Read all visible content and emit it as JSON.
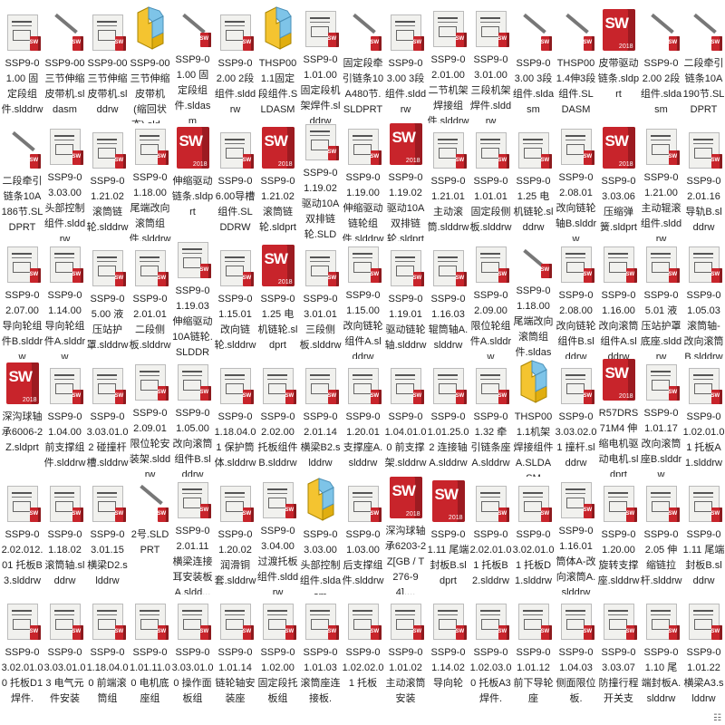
{
  "colors": {
    "sw_red": "#c8242b",
    "assembly_yellow": "#f4c430",
    "assembly_blue": "#7ec4e8"
  },
  "view_toggle_icon": "details-view-icon",
  "rows": [
    [
      {
        "name": "SSP9-01.00 固定段组件.slddrw",
        "icon": "drawing"
      },
      {
        "name": "SSP9-00三节伸缩皮带机.sldasm",
        "icon": "model"
      },
      {
        "name": "SSP9-00三节伸缩皮带机.slddrw",
        "icon": "drawing"
      },
      {
        "name": "SSP9-00三节伸缩皮带机(缩回状态).sld...",
        "icon": "assembly"
      },
      {
        "name": "SSP9-01.00 固定段组件.sldasm",
        "icon": "model"
      },
      {
        "name": "SSP9-02.00 2段组件.slddrw",
        "icon": "drawing"
      },
      {
        "name": "THSP001.1固定段组件.SLDASM",
        "icon": "assembly"
      },
      {
        "name": "SSP9-01.01.00 固定段机架焊件.slddrw",
        "icon": "drawing"
      },
      {
        "name": "固定段牵引链条10A480节.SLDPRT",
        "icon": "model"
      },
      {
        "name": "SSP9-03.00 3段组件.slddrw",
        "icon": "drawing"
      },
      {
        "name": "SSP9-02.01.00 二节机架焊接组件.slddrw",
        "icon": "drawing"
      },
      {
        "name": "SSP9-03.01.00 三段机架焊件.slddrw",
        "icon": "drawing"
      },
      {
        "name": "SSP9-03.00 3段组件.sldasm",
        "icon": "model"
      },
      {
        "name": "THSP001.4伸3段组件.SLDASM",
        "icon": "model"
      },
      {
        "name": "皮带驱动链条.sldprt",
        "icon": "sw"
      },
      {
        "name": "SSP9-02.00 2段组件.sldasm",
        "icon": "model"
      },
      {
        "name": "二段牵引链条10A190节.SLDPRT",
        "icon": "model"
      }
    ],
    [
      {
        "name": "二段牵引链条10A186节.SLDPRT",
        "icon": "model"
      },
      {
        "name": "SSP9-03.03.00 头部控制组件.slddrw",
        "icon": "drawing"
      },
      {
        "name": "SSP9-01.21.02 滚筒链轮.slddrw",
        "icon": "drawing"
      },
      {
        "name": "SSP9-01.18.00 尾端改向滚筒组件.slddrw",
        "icon": "drawing"
      },
      {
        "name": "伸缩驱动链条.sldprt",
        "icon": "sw"
      },
      {
        "name": "SSP9-06.00导槽组件.SLDDRW",
        "icon": "drawing"
      },
      {
        "name": "SSP9-01.21.02 滚筒链轮.sldprt",
        "icon": "sw"
      },
      {
        "name": "SSP9-01.19.02驱动10A双排链轮.SLDD...",
        "icon": "drawing"
      },
      {
        "name": "SSP9-01.19.00 伸缩驱动链轮组件.slddrw",
        "icon": "drawing"
      },
      {
        "name": "SSP9-01.19.02 驱动10A双排链轮.sldprt",
        "icon": "sw"
      },
      {
        "name": "SSP9-01.21.01 主动滚筒.slddrw",
        "icon": "drawing"
      },
      {
        "name": "SSP9-01.01.01 固定段侧板.slddrw",
        "icon": "drawing"
      },
      {
        "name": "SSP9-01.25 电机链轮.slddrw",
        "icon": "drawing"
      },
      {
        "name": "SSP9-02.08.01 改向链轮轴B.slddrw",
        "icon": "drawing"
      },
      {
        "name": "SSP9-03.03.06 压缩弹簧.sldprt",
        "icon": "sw"
      },
      {
        "name": "SSP9-01.21.00 主动辊滚组件.slddrw",
        "icon": "drawing"
      },
      {
        "name": "SSP9-02.01.16 导轨B.slddrw",
        "icon": "drawing"
      }
    ],
    [
      {
        "name": "SSP9-02.07.00 导向轮组件B.slddrw",
        "icon": "drawing"
      },
      {
        "name": "SSP9-01.14.00 导向轮组件A.slddrw",
        "icon": "drawing"
      },
      {
        "name": "SSP9-05.00 液压站护罩.slddrw",
        "icon": "drawing"
      },
      {
        "name": "SSP9-02.01.01 二段侧板.slddrw",
        "icon": "drawing"
      },
      {
        "name": "SSP9-01.19.03伸缩驱动10A链轮.SLDDRW",
        "icon": "drawing"
      },
      {
        "name": "SSP9-01.15.01 改向链轮.slddrw",
        "icon": "drawing"
      },
      {
        "name": "SSP9-01.25 电机链轮.sldprt",
        "icon": "sw"
      },
      {
        "name": "SSP9-03.01.01 三段侧板.slddrw",
        "icon": "drawing"
      },
      {
        "name": "SSP9-01.15.00 改向链轮组件A.slddrw",
        "icon": "drawing"
      },
      {
        "name": "SSP9-01.19.01 驱动链轮轴.slddrw",
        "icon": "drawing"
      },
      {
        "name": "SSP9-01.16.03 辊筒轴A.slddrw",
        "icon": "drawing"
      },
      {
        "name": "SSP9-02.09.00 限位轮组件A.slddrw",
        "icon": "drawing"
      },
      {
        "name": "SSP9-01.18.00 尾端改向滚筒组件.sldasm",
        "icon": "model"
      },
      {
        "name": "SSP9-02.08.00 改向链轮组件B.slddrw",
        "icon": "drawing"
      },
      {
        "name": "SSP9-01.16.00 改向滚筒组件A.slddrw",
        "icon": "drawing"
      },
      {
        "name": "SSP9-05.01 液压站护罩底座.slddrw",
        "icon": "drawing"
      },
      {
        "name": "SSP9-01.05.03 滚筒轴-改向滚筒B.slddrw",
        "icon": "drawing"
      }
    ],
    [
      {
        "name": "深沟球轴承6006-2Z.sldprt",
        "icon": "sw"
      },
      {
        "name": "SSP9-01.04.00 前支撑组件.slddrw",
        "icon": "drawing"
      },
      {
        "name": "SSP9-03.03.01.02 碰撞杆槽.slddrw",
        "icon": "drawing"
      },
      {
        "name": "SSP9-02.09.01 限位轮安装架.slddrw",
        "icon": "drawing"
      },
      {
        "name": "SSP9-01.05.00 改向滚筒组件B.slddrw",
        "icon": "drawing"
      },
      {
        "name": "SSP9-01.18.04.01 保护筒体.slddrw",
        "icon": "drawing"
      },
      {
        "name": "SSP9-02.02.00 托板组件B.slddrw",
        "icon": "drawing"
      },
      {
        "name": "SSP9-02.01.14 横梁B2.slddrw",
        "icon": "drawing"
      },
      {
        "name": "SSP9-01.20.01 支撑座A.slddrw",
        "icon": "drawing"
      },
      {
        "name": "SSP9-01.04.01.00 前支撑架.slddrw",
        "icon": "drawing"
      },
      {
        "name": "SSP9-01.01.25.02 连接轴A.slddrw",
        "icon": "drawing"
      },
      {
        "name": "SSP9-01.32 牵引链条座A.slddrw",
        "icon": "drawing"
      },
      {
        "name": "THSP001.1机架焊接组件A.SLDASM",
        "icon": "assembly"
      },
      {
        "name": "SSP9-03.03.02.01 撞杆.slddrw",
        "icon": "drawing"
      },
      {
        "name": "R57DRS71M4 伸缩电机驱动电机.sldprt",
        "icon": "sw"
      },
      {
        "name": "SSP9-01.01.17 改向滚筒座B.slddrw",
        "icon": "drawing"
      },
      {
        "name": "SSP9-01.02.01.01 托板A1.slddrw",
        "icon": "drawing"
      }
    ],
    [
      {
        "name": "SSP9-02.02.012.01 托板B3.slddrw",
        "icon": "drawing"
      },
      {
        "name": "SSP9-01.18.02 滚筒轴.slddrw",
        "icon": "drawing"
      },
      {
        "name": "SSP9-03.01.15 横梁D2.slddrw",
        "icon": "drawing"
      },
      {
        "name": "2号.SLDPRT",
        "icon": "model"
      },
      {
        "name": "SSP9-02.01.11 横梁连接耳安装板A.sldd...",
        "icon": "drawing"
      },
      {
        "name": "SSP9-01.20.02 润滑铜套.slddrw",
        "icon": "drawing"
      },
      {
        "name": "SSP9-03.04.00 过渡托板组件.slddrw",
        "icon": "drawing"
      },
      {
        "name": "SSP9-03.03.00 头部控制组件.sldasm",
        "icon": "assembly"
      },
      {
        "name": "SSP9-01.03.00 后支撑组件.slddrw",
        "icon": "drawing"
      },
      {
        "name": "深沟球轴承6203-2Z[GB / T 276-94]....",
        "icon": "sw"
      },
      {
        "name": "SSP9-01.11 尾端封板B.sldprt",
        "icon": "sw"
      },
      {
        "name": "SSP9-02.02.01.01 托板B2.slddrw",
        "icon": "drawing"
      },
      {
        "name": "SSP9-03.02.01.01 托板D1.slddrw",
        "icon": "drawing"
      },
      {
        "name": "SSP9-01.16.01 筒体A-改向滚筒A.slddrw",
        "icon": "drawing"
      },
      {
        "name": "SSP9-01.20.00 旋转支撑座.slddrw",
        "icon": "drawing"
      },
      {
        "name": "SSP9-02.05 伸缩链拉杆.slddrw",
        "icon": "drawing"
      },
      {
        "name": "SSP9-01.11 尾端封板B.slddrw",
        "icon": "drawing"
      }
    ],
    [
      {
        "name": "SSP9-03.02.01.00 托板D1焊件.",
        "icon": "drawing"
      },
      {
        "name": "SSP9-03.03.01.03 电气元件安装",
        "icon": "drawing"
      },
      {
        "name": "SSP9-01.18.04.00 前端滚筒组",
        "icon": "drawing"
      },
      {
        "name": "SSP9-01.01.11.00 电机底座组",
        "icon": "drawing"
      },
      {
        "name": "SSP9-03.03.01.00 操作面板组",
        "icon": "drawing"
      },
      {
        "name": "SSP9-01.01.14 链轮轴安装座",
        "icon": "drawing"
      },
      {
        "name": "SSP9-01.02.00 固定段托板组",
        "icon": "drawing"
      },
      {
        "name": "SSP9-01.01.03 滚筒座连接板.",
        "icon": "drawing"
      },
      {
        "name": "SSP9-01.02.02.01 托板",
        "icon": "drawing"
      },
      {
        "name": "SSP9-01.01.02 主动滚筒安装",
        "icon": "drawing"
      },
      {
        "name": "SSP9-01.14.02 导向轮",
        "icon": "drawing"
      },
      {
        "name": "SSP9-01.02.03.00 托板A3焊件.",
        "icon": "drawing"
      },
      {
        "name": "SSP9-01.01.12 前下导轮座",
        "icon": "drawing"
      },
      {
        "name": "SSP9-01.04.03 侧面限位板.",
        "icon": "drawing"
      },
      {
        "name": "SSP9-03.03.07 防撞行程开关支",
        "icon": "drawing"
      },
      {
        "name": "SSP9-01.10 尾端封板A.slddrw",
        "icon": "drawing"
      },
      {
        "name": "SSP9-01.01.22 横梁A3.slddrw",
        "icon": "drawing"
      }
    ]
  ]
}
